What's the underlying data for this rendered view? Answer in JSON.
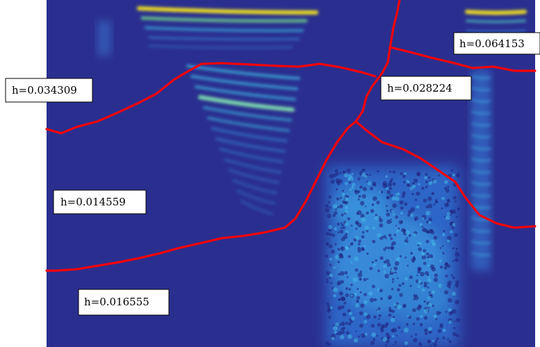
{
  "figure": {
    "background_color": "#2a2f8f",
    "boundary_color": "#ff0000",
    "region_labels": [
      "h=0.034309",
      "h=0.064153",
      "h=0.028224",
      "h=0.014559",
      "h=0.016555"
    ]
  }
}
